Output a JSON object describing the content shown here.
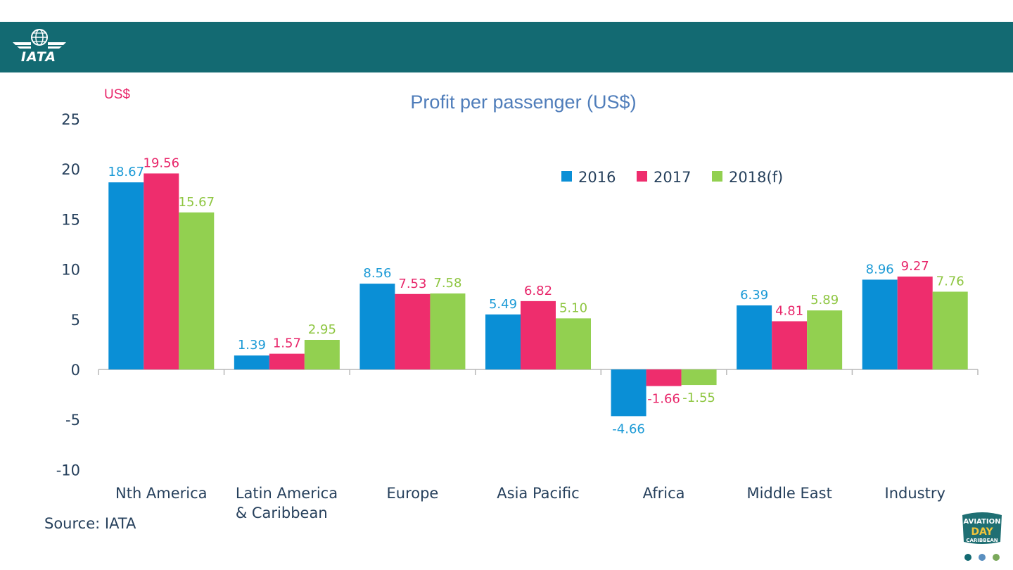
{
  "header": {
    "logo_text": "IATA"
  },
  "chart_data": {
    "type": "bar",
    "title": "Profit per passenger (US$)",
    "ylabel": "US$",
    "ylim": [
      -10,
      25
    ],
    "yticks": [
      25,
      20,
      15,
      10,
      5,
      0,
      -5,
      -10
    ],
    "categories": [
      "Nth America",
      "Latin America & Caribbean",
      "Europe",
      "Asia Pacific",
      "Africa",
      "Middle East",
      "Industry"
    ],
    "category_lines": [
      [
        "Nth America"
      ],
      [
        "Latin America",
        "& Caribbean"
      ],
      [
        "Europe"
      ],
      [
        "Asia Pacific"
      ],
      [
        "Africa"
      ],
      [
        "Middle East"
      ],
      [
        "Industry"
      ]
    ],
    "series": [
      {
        "name": "2016",
        "color": "#0a8fd6",
        "values": [
          18.67,
          1.39,
          8.56,
          5.49,
          -4.66,
          6.39,
          8.96
        ],
        "labels": [
          "18.67",
          "1.39",
          "8.56",
          "5.49",
          "-4.66",
          "6.39",
          "8.96"
        ]
      },
      {
        "name": "2017",
        "color": "#ee2d6d",
        "values": [
          19.56,
          1.57,
          7.53,
          6.82,
          -1.66,
          4.81,
          9.27
        ],
        "labels": [
          "19.56",
          "1.57",
          "7.53",
          "6.82",
          "-1.66",
          "4.81",
          "9.27"
        ]
      },
      {
        "name": "2018(f)",
        "color": "#92d050",
        "values": [
          15.67,
          2.95,
          7.58,
          5.1,
          -1.55,
          5.89,
          7.76
        ],
        "labels": [
          "15.67",
          "2.95",
          "7.58",
          "5.10",
          "-1.55",
          "5.89",
          "7.76"
        ]
      }
    ],
    "label_colors": [
      "#1b9ad6",
      "#e8266a",
      "#8ec641"
    ],
    "legend_position": "top-right",
    "grid": false
  },
  "footer": {
    "source": "Source: IATA",
    "badge_top": "AVIATION",
    "badge_mid": "DAY",
    "badge_bottom": "CARIBBEAN"
  }
}
